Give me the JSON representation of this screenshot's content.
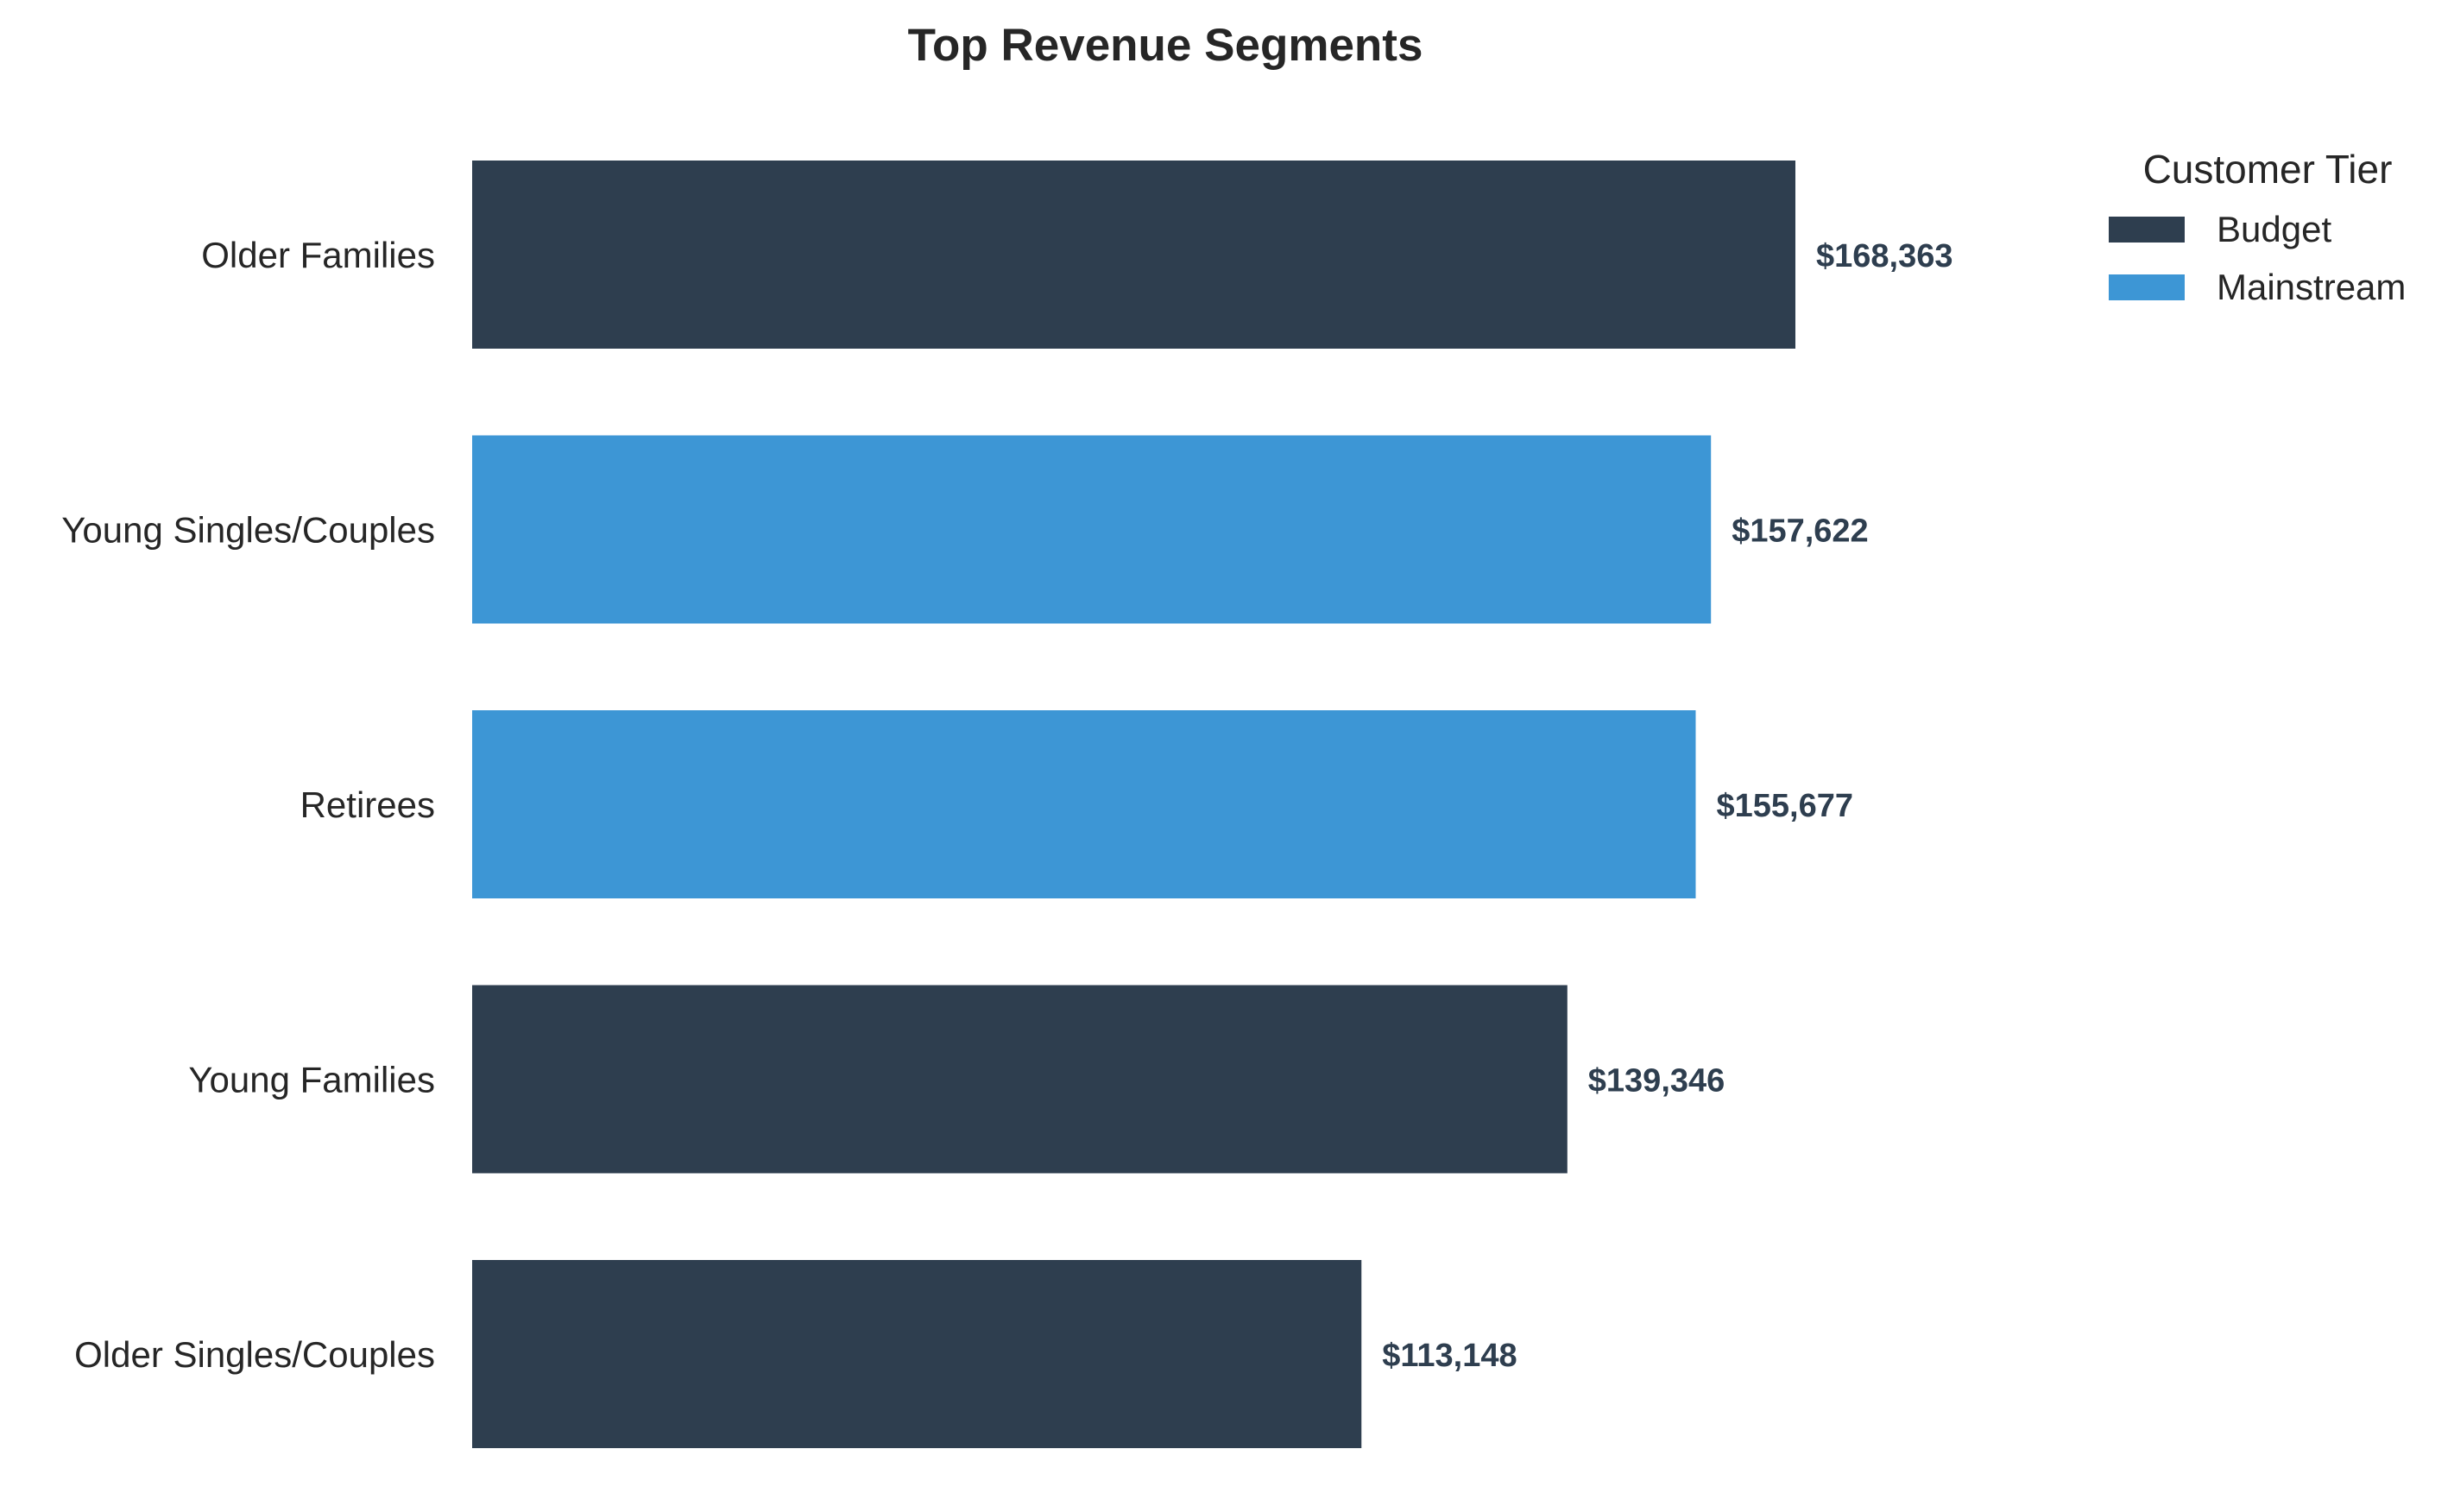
{
  "chart_data": {
    "type": "bar",
    "orientation": "horizontal",
    "title": "Top Revenue Segments",
    "xlabel": "",
    "ylabel": "",
    "categories": [
      "Older Families",
      "Young Singles/Couples",
      "Retirees",
      "Young Families",
      "Older Singles/Couples"
    ],
    "values": [
      168363,
      157622,
      155677,
      139346,
      113148
    ],
    "value_labels": [
      "$168,363",
      "$157,622",
      "$155,677",
      "$139,346",
      "$113,148"
    ],
    "tiers": [
      "Budget",
      "Mainstream",
      "Mainstream",
      "Budget",
      "Budget"
    ],
    "xlim": [
      0,
      168363
    ],
    "grid": false,
    "legend": {
      "title": "Customer Tier",
      "placement": "top-right",
      "entries": [
        {
          "name": "Budget",
          "color": "#2e3e4f"
        },
        {
          "name": "Mainstream",
          "color": "#3d96d5"
        }
      ]
    }
  }
}
